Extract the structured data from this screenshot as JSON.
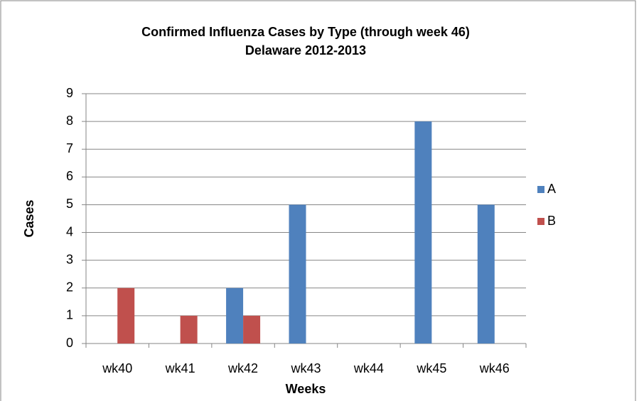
{
  "chart_data": {
    "type": "bar",
    "title": "Confirmed Influenza Cases by Type (through week 46)",
    "subtitle": "Delaware 2012-2013",
    "x_label": "Weeks",
    "y_label": "Cases",
    "categories": [
      "wk40",
      "wk41",
      "wk42",
      "wk43",
      "wk44",
      "wk45",
      "wk46"
    ],
    "series": [
      {
        "name": "A",
        "color": "#4f81bd",
        "values": [
          0,
          0,
          2,
          5,
          0,
          8,
          5
        ]
      },
      {
        "name": "B",
        "color": "#c0504d",
        "values": [
          2,
          1,
          1,
          0,
          0,
          0,
          0
        ]
      }
    ],
    "ylim": [
      0,
      9
    ],
    "yticks": [
      0,
      1,
      2,
      3,
      4,
      5,
      6,
      7,
      8,
      9
    ],
    "grid": true,
    "legend": "right"
  }
}
